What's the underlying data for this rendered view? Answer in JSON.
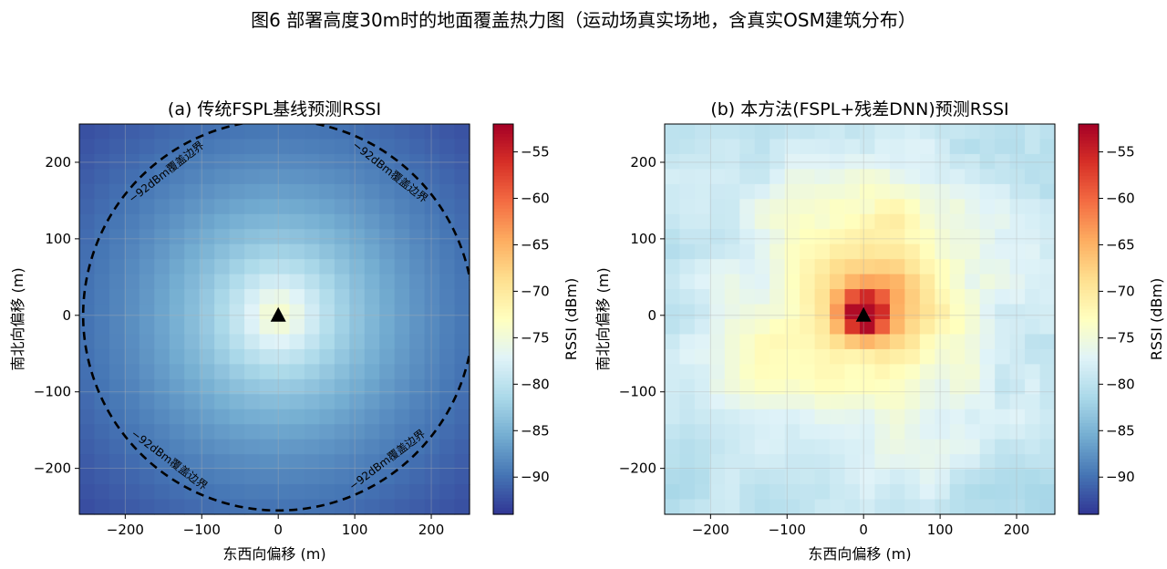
{
  "figure": {
    "title": "图6 部署高度30m时的地面覆盖热力图（运动场真实场地，含真实OSM建筑分布）"
  },
  "chart_data": [
    {
      "type": "heatmap",
      "title": "(a) 传统FSPL基线预测RSSI",
      "xlabel": "东西向偏移 (m)",
      "ylabel": "南北向偏移 (m)",
      "xlim": [
        -260,
        250
      ],
      "ylim": [
        -260,
        250
      ],
      "xticks": [
        -200,
        -100,
        0,
        100,
        200
      ],
      "yticks": [
        -200,
        -100,
        0,
        100,
        200
      ],
      "xtick_labels": [
        "−200",
        "−100",
        "0",
        "100",
        "200"
      ],
      "ytick_labels": [
        "−200",
        "−100",
        "0",
        "100",
        "200"
      ],
      "grid": true,
      "colormap": "RdYlBu_r",
      "colorbar": {
        "label": "RSSI (dBm)",
        "range": [
          -94,
          -52
        ],
        "ticks": [
          -55,
          -60,
          -65,
          -70,
          -75,
          -80,
          -85,
          -90
        ],
        "tick_labels": [
          "−55",
          "−60",
          "−65",
          "−70",
          "−75",
          "−80",
          "−85",
          "−90"
        ]
      },
      "grid_size": 26,
      "model": "fspl",
      "center_value_dbm": -74,
      "edge_value_dbm": -92.5,
      "transmitter": {
        "x": 0,
        "y": 0,
        "marker": "triangle"
      },
      "contour": {
        "level_dbm": -92,
        "radius_m": 255,
        "label": "−92dBm覆盖边界",
        "label_angles_deg": [
          128,
          52,
          233,
          307
        ]
      }
    },
    {
      "type": "heatmap",
      "title": "(b) 本方法(FSPL+残差DNN)预测RSSI",
      "xlabel": "东西向偏移 (m)",
      "ylabel": "南北向偏移 (m)",
      "xlim": [
        -260,
        250
      ],
      "ylim": [
        -260,
        250
      ],
      "xticks": [
        -200,
        -100,
        0,
        100,
        200
      ],
      "yticks": [
        -200,
        -100,
        0,
        100,
        200
      ],
      "xtick_labels": [
        "−200",
        "−100",
        "0",
        "100",
        "200"
      ],
      "ytick_labels": [
        "−200",
        "−100",
        "0",
        "100",
        "200"
      ],
      "grid": true,
      "colormap": "RdYlBu_r",
      "colorbar": {
        "label": "RSSI (dBm)",
        "range": [
          -94,
          -52
        ],
        "ticks": [
          -55,
          -60,
          -65,
          -70,
          -75,
          -80,
          -85,
          -90
        ],
        "tick_labels": [
          "−55",
          "−60",
          "−65",
          "−70",
          "−75",
          "−80",
          "−85",
          "−90"
        ]
      },
      "grid_size": 26,
      "model": "dnn",
      "center_value_dbm": -53,
      "edge_value_dbm": -82,
      "transmitter": {
        "x": 0,
        "y": 0,
        "marker": "triangle"
      }
    }
  ]
}
